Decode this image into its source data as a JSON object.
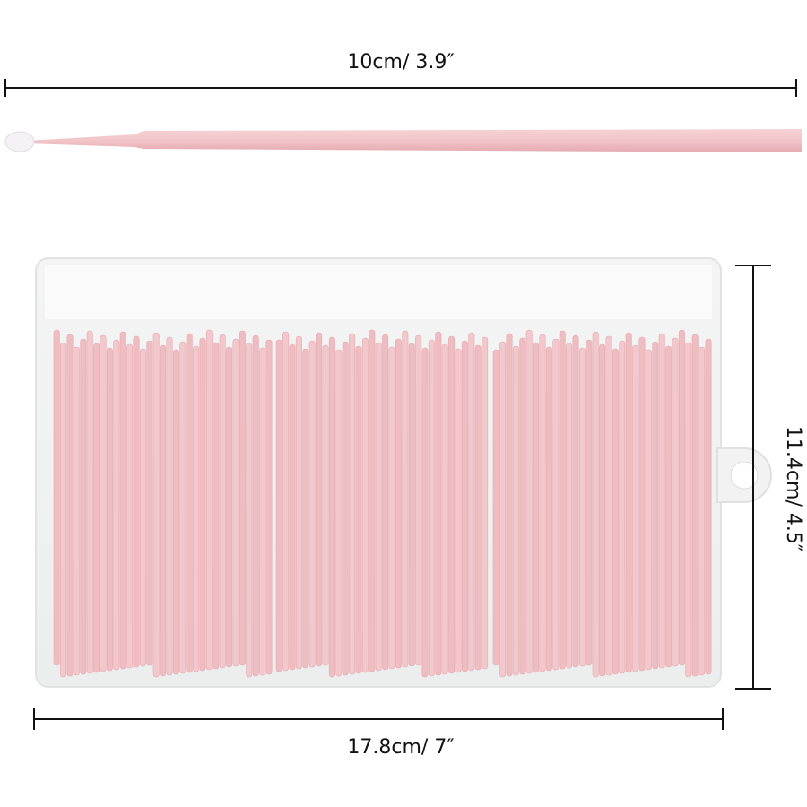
{
  "dimensions": {
    "length": "10cm/ 3.9″",
    "height": "11.4cm/ 4.5″",
    "width": "17.8cm/ 7″"
  }
}
